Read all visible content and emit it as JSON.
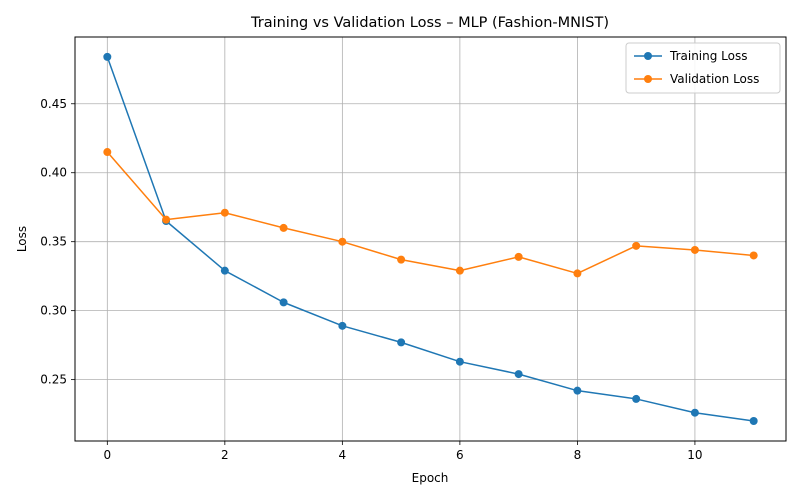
{
  "chart_data": {
    "type": "line",
    "title": "Training vs Validation Loss – MLP (Fashion-MNIST)",
    "xlabel": "Epoch",
    "ylabel": "Loss",
    "x": [
      0,
      1,
      2,
      3,
      4,
      5,
      6,
      7,
      8,
      9,
      10,
      11
    ],
    "xlim": [
      -0.55,
      11.55
    ],
    "ylim": [
      0.2055,
      0.4984
    ],
    "xticks": [
      0,
      2,
      4,
      6,
      8,
      10
    ],
    "xtick_labels": [
      "0",
      "2",
      "4",
      "6",
      "8",
      "10"
    ],
    "yticks": [
      0.25,
      0.3,
      0.35,
      0.4,
      0.45
    ],
    "ytick_labels": [
      "0.25",
      "0.30",
      "0.35",
      "0.40",
      "0.45"
    ],
    "grid": true,
    "legend_position": "top-right",
    "series": [
      {
        "name": "Training Loss",
        "color": "#1f77b4",
        "marker": "circle",
        "values": [
          0.484,
          0.365,
          0.329,
          0.306,
          0.289,
          0.277,
          0.263,
          0.254,
          0.242,
          0.236,
          0.226,
          0.22
        ]
      },
      {
        "name": "Validation Loss",
        "color": "#ff7f0e",
        "marker": "circle",
        "values": [
          0.415,
          0.366,
          0.371,
          0.36,
          0.35,
          0.337,
          0.329,
          0.339,
          0.327,
          0.347,
          0.344,
          0.34
        ]
      }
    ]
  }
}
